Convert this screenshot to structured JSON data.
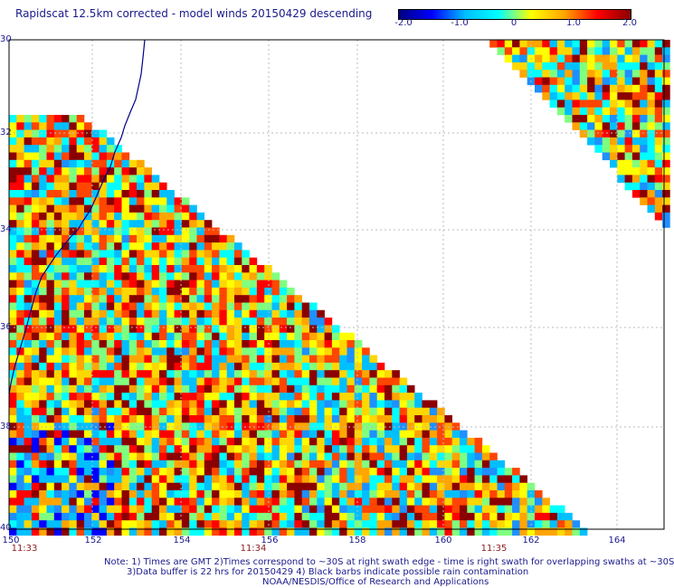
{
  "title": "Rapidscat 12.5km corrected - model winds 20150429 descending",
  "colorbar": {
    "ticks": [
      "-2.0",
      "-1.0",
      "0",
      "1.0",
      "2.0"
    ],
    "range": [
      -2.0,
      2.0
    ],
    "colors": [
      "#000080",
      "#0000ff",
      "#00bfff",
      "#00ffff",
      "#ffff00",
      "#ffa500",
      "#ff0000",
      "#8b0000"
    ]
  },
  "axes": {
    "lat_labels": [
      "30",
      "32",
      "34",
      "36",
      "38",
      "40"
    ],
    "lon_labels": [
      "150",
      "152",
      "154",
      "156",
      "158",
      "160",
      "162",
      "164"
    ],
    "time_labels": [
      "11:33",
      "11:34",
      "11:35"
    ]
  },
  "notes": {
    "line1": "Note: 1) Times are GMT 2)Times correspond to ~30S at right swath edge - time is right swath for overlapping swaths at ~30S",
    "line2": "3)Data buffer is 22 hrs for 20150429 4) Black barbs indicate possible rain contamination",
    "line3": "NOAA/NESDIS/Office of Research and Applications"
  },
  "map": {
    "coastline_color": "#00008b",
    "grid_color": "#bbbbbb",
    "grid_style": "dashed"
  }
}
